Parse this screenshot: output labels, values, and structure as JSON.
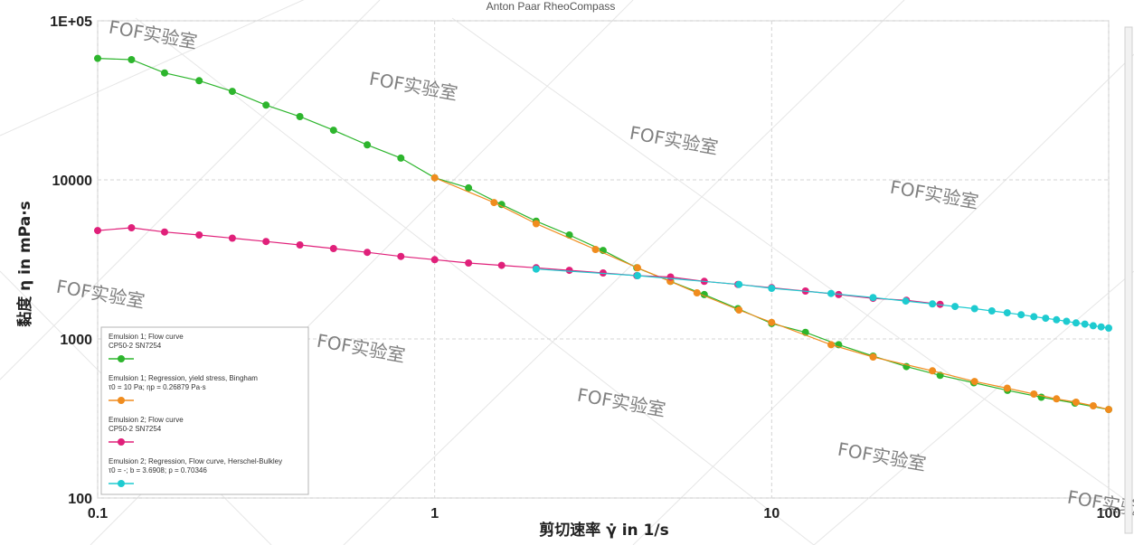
{
  "window": {
    "title": "Anton Paar RheoCompass"
  },
  "watermark_text": "FOF实验室",
  "chart_data": {
    "type": "line",
    "xscale": "log",
    "yscale": "log",
    "xlim": [
      0.1,
      100
    ],
    "ylim": [
      100,
      100000
    ],
    "xlabel": "剪切速率 γ̇ in 1/s",
    "ylabel": "黏度 η in mPa·s",
    "grid": true,
    "legend_position": "bottom-left",
    "x_ticks": [
      {
        "value": 0.1,
        "label": "0.1"
      },
      {
        "value": 1,
        "label": "1"
      },
      {
        "value": 10,
        "label": "10"
      },
      {
        "value": 100,
        "label": "100"
      }
    ],
    "y_ticks": [
      {
        "value": 100,
        "label": "100"
      },
      {
        "value": 1000,
        "label": "1000"
      },
      {
        "value": 10000,
        "label": "10000"
      },
      {
        "value": 100000,
        "label": "1E+05"
      }
    ],
    "series": [
      {
        "name": "Emulsion 1; Flow curve",
        "legend_lines": [
          "Emulsion 1; Flow curve",
          "CP50-2 SN7254"
        ],
        "color": "#2db52d",
        "x": [
          0.1,
          0.126,
          0.158,
          0.2,
          0.251,
          0.316,
          0.398,
          0.501,
          0.631,
          0.794,
          1.0,
          1.26,
          1.58,
          2.0,
          2.51,
          3.16,
          3.98,
          5.01,
          6.31,
          7.94,
          10.0,
          12.6,
          15.8,
          20.0,
          25.1,
          31.6,
          39.8,
          50.1,
          63.1,
          79.4,
          100
        ],
        "y": [
          58000,
          57000,
          47000,
          42000,
          36000,
          29500,
          25000,
          20500,
          16600,
          13700,
          10300,
          8900,
          7000,
          5500,
          4500,
          3600,
          2800,
          2300,
          1900,
          1550,
          1250,
          1100,
          920,
          780,
          670,
          590,
          530,
          475,
          430,
          395,
          360
        ]
      },
      {
        "name": "Emulsion 1; Regression, yield stress, Bingham",
        "legend_lines": [
          "Emulsion 1; Regression, yield stress, Bingham",
          "τ0 = 10 Pa; ηp = 0.26879 Pa·s"
        ],
        "color": "#f08c1e",
        "x": [
          1.0,
          1.5,
          2.0,
          3.0,
          4.0,
          5.0,
          6.0,
          8.0,
          10,
          15,
          20,
          30,
          40,
          50,
          60,
          70,
          80,
          90,
          100
        ],
        "y": [
          10300,
          7200,
          5300,
          3650,
          2800,
          2300,
          1950,
          1520,
          1270,
          920,
          770,
          630,
          540,
          490,
          450,
          420,
          400,
          380,
          360
        ]
      },
      {
        "name": "Emulsion 2; Flow curve",
        "legend_lines": [
          "Emulsion 2; Flow curve",
          "CP50-2 SN7254"
        ],
        "color": "#e0207a",
        "x": [
          0.1,
          0.126,
          0.158,
          0.2,
          0.251,
          0.316,
          0.398,
          0.501,
          0.631,
          0.794,
          1.0,
          1.26,
          1.58,
          2.0,
          2.51,
          3.16,
          3.98,
          5.01,
          6.31,
          7.94,
          10.0,
          12.6,
          15.8,
          20.0,
          25.1,
          31.6
        ],
        "y": [
          4800,
          5000,
          4700,
          4500,
          4300,
          4100,
          3900,
          3700,
          3500,
          3300,
          3150,
          3000,
          2900,
          2800,
          2700,
          2600,
          2500,
          2450,
          2300,
          2200,
          2100,
          2000,
          1900,
          1800,
          1750,
          1650
        ]
      },
      {
        "name": "Emulsion 2; Regression, Flow curve, Herschel-Bulkley",
        "legend_lines": [
          "Emulsion 2; Regression, Flow curve, Herschel-Bulkley",
          "τ0 = -; b = 3.6908; p = 0.70346"
        ],
        "color": "#1ecbd0",
        "x": [
          2.0,
          4.0,
          8.0,
          10,
          15,
          20,
          25,
          30,
          35,
          40,
          45,
          50,
          55,
          60,
          65,
          70,
          75,
          80,
          85,
          90,
          95,
          100
        ],
        "y": [
          2750,
          2500,
          2200,
          2080,
          1930,
          1820,
          1730,
          1660,
          1600,
          1550,
          1500,
          1460,
          1420,
          1380,
          1350,
          1320,
          1290,
          1260,
          1240,
          1210,
          1190,
          1170
        ]
      }
    ]
  }
}
